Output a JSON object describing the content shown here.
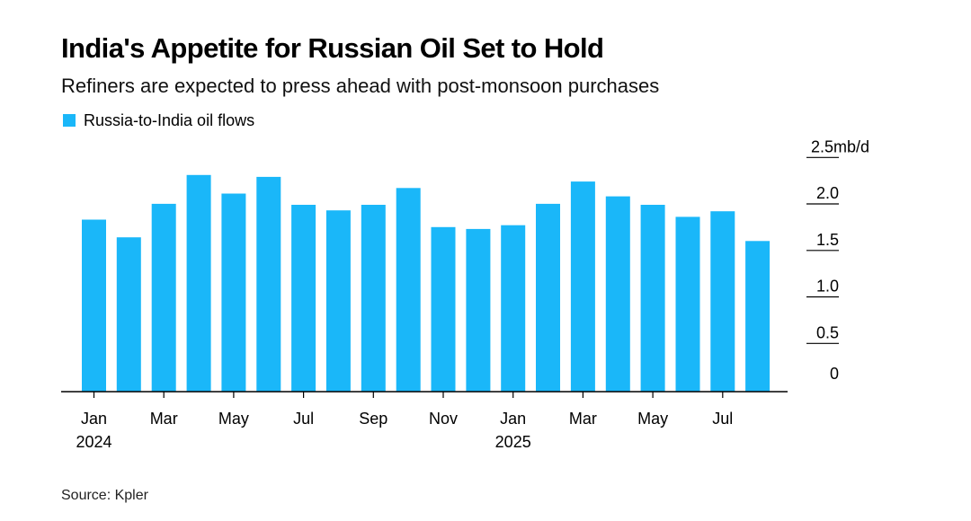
{
  "title": "India's Appetite for Russian Oil Set to Hold",
  "subtitle": "Refiners are expected to press ahead with post-monsoon purchases",
  "source": "Source: Kpler",
  "colors": {
    "bar": "#1ab7f9",
    "axis": "#000000"
  },
  "chart_data": {
    "type": "bar",
    "title": "India's Appetite for Russian Oil Set to Hold",
    "subtitle": "Refiners are expected to press ahead with post-monsoon purchases",
    "legend": [
      {
        "name": "Russia-to-India oil flows",
        "color": "#1ab7f9"
      }
    ],
    "legend_position": "top-left",
    "unit": "mb/d",
    "ylim": [
      0,
      2.5
    ],
    "y_ticks": [
      "2.5mb/d",
      "2.0",
      "1.5",
      "1.0",
      "0.5",
      "0"
    ],
    "x_tick_labels": [
      {
        "month": "Jan",
        "year": "2024",
        "index": 0
      },
      {
        "month": "Mar",
        "year": "",
        "index": 2
      },
      {
        "month": "May",
        "year": "",
        "index": 4
      },
      {
        "month": "Jul",
        "year": "",
        "index": 6
      },
      {
        "month": "Sep",
        "year": "",
        "index": 8
      },
      {
        "month": "Nov",
        "year": "",
        "index": 10
      },
      {
        "month": "Jan",
        "year": "2025",
        "index": 12
      },
      {
        "month": "Mar",
        "year": "",
        "index": 14
      },
      {
        "month": "May",
        "year": "",
        "index": 16
      },
      {
        "month": "Jul",
        "year": "",
        "index": 18
      }
    ],
    "categories": [
      "Jan 2024",
      "Feb 2024",
      "Mar 2024",
      "Apr 2024",
      "May 2024",
      "Jun 2024",
      "Jul 2024",
      "Aug 2024",
      "Sep 2024",
      "Oct 2024",
      "Nov 2024",
      "Dec 2024",
      "Jan 2025",
      "Feb 2025",
      "Mar 2025",
      "Apr 2025",
      "May 2025",
      "Jun 2025",
      "Jul 2025",
      "Aug 2025"
    ],
    "series": [
      {
        "name": "Russia-to-India oil flows",
        "values": [
          1.85,
          1.66,
          2.02,
          2.33,
          2.13,
          2.31,
          2.01,
          1.95,
          2.01,
          2.19,
          1.77,
          1.75,
          1.79,
          2.02,
          2.26,
          2.1,
          2.01,
          1.88,
          1.94,
          1.62
        ]
      }
    ]
  }
}
